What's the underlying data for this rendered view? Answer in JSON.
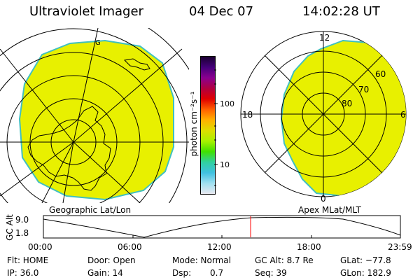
{
  "header": {
    "instrument": "Ultraviolet Imager",
    "date": "04 Dec 07",
    "time": "14:02:28 UT"
  },
  "colorbar": {
    "unit_label": "photon cm⁻²s⁻¹",
    "tick_labels": [
      "100",
      "10"
    ],
    "colors": [
      "#1a0030",
      "#44007a",
      "#8a0090",
      "#b00040",
      "#e00000",
      "#ff6000",
      "#ffb000",
      "#dddd00",
      "#a8f000",
      "#40e000",
      "#30d0a0",
      "#40c0e0",
      "#a0e0f0",
      "#e8e8f0"
    ]
  },
  "left_panel": {
    "caption": "Geographic Lat/Lon",
    "meridian_label": "G",
    "fill_color": "#e8f000"
  },
  "right_panel": {
    "caption": "Apex MLat/MLT",
    "mlt_labels": [
      "12",
      "18",
      "6",
      "0"
    ],
    "lat_labels": [
      "60",
      "70",
      "80"
    ],
    "fill_color": "#e8f000"
  },
  "altitude_plot": {
    "ylabel": "GC Alt",
    "yticks": [
      "9.0",
      "1.8"
    ],
    "xticks": [
      "00:00",
      "06:00",
      "12:00",
      "18:00",
      "23:59"
    ],
    "current_marker_color": "#ff0000"
  },
  "status": {
    "flt": "Flt: HOME",
    "door": "Door: Open",
    "mode": "Mode: Normal",
    "gc_alt": "GC Alt: 8.7 Re",
    "glat": "GLat: −77.8",
    "ip": "IP: 36.0",
    "gain": "Gain: 14",
    "dsp_label": "Dsp:",
    "dsp_value": "0.7",
    "seq": "Seq: 39",
    "glon": "GLon: 182.9"
  }
}
